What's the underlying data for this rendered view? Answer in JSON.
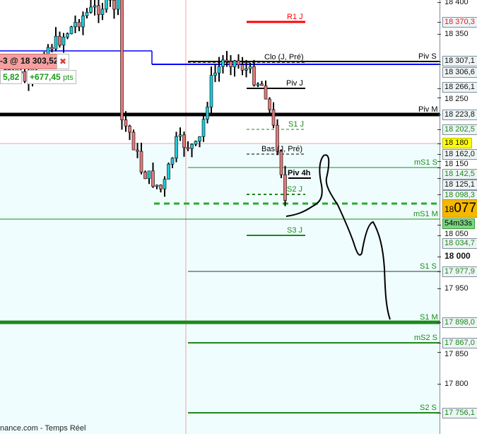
{
  "colors": {
    "up": "#21c9d6",
    "down": "#e07a7a",
    "resistance": "#ff0000",
    "pivot": "#000000",
    "support": "#1a8a1a",
    "weekly_pivot": "#0000ff",
    "current": "#f5b800",
    "marker": "#ffff00"
  },
  "trade": {
    "label": "-3 @ 18 303,52",
    "close_icon": "close-icon",
    "pnl_left": "5,82",
    "pnl_right": "+677,45",
    "pnl_unit": "pts"
  },
  "levels": [
    {
      "name": "R1 J",
      "value": "18 370,3",
      "color": "#ff0000"
    },
    {
      "name": "Clo (J, Pré)",
      "value": ""
    },
    {
      "name": "Piv S",
      "value": "18 307,1"
    },
    {
      "name": "",
      "value": "18 306,6"
    },
    {
      "name": "Piv J",
      "value": "18 266,1"
    },
    {
      "name": "Piv M",
      "value": "18 223,8"
    },
    {
      "name": "S1 J",
      "value": "18 202,5"
    },
    {
      "name": "",
      "value": "18 180"
    },
    {
      "name": "Bas (J, Pré)",
      "value": "18 162,0"
    },
    {
      "name": "mS1 S",
      "value": "18 142,5"
    },
    {
      "name": "Piv 4h",
      "value": "18 125,1"
    },
    {
      "name": "S2 J",
      "value": "18 098,3"
    },
    {
      "name": "mS1 M",
      "value": ""
    },
    {
      "name": "S3 J",
      "value": "18 034,7"
    },
    {
      "name": "S1 S",
      "value": "17 977,9"
    },
    {
      "name": "S1 M",
      "value": "17 898,0"
    },
    {
      "name": "mS2 S",
      "value": "17 867,0"
    },
    {
      "name": "S2 S",
      "value": "17 756,1"
    }
  ],
  "axis_ticks": [
    "18 400",
    "18 350",
    "18 250",
    "18 000",
    "17 950",
    "17 850",
    "17 800",
    "18 150",
    "18 050"
  ],
  "current_price": {
    "prefix": "18",
    "big": "077,",
    "timer": "54m33s"
  },
  "footer": "nance.com - Temps Réel"
}
